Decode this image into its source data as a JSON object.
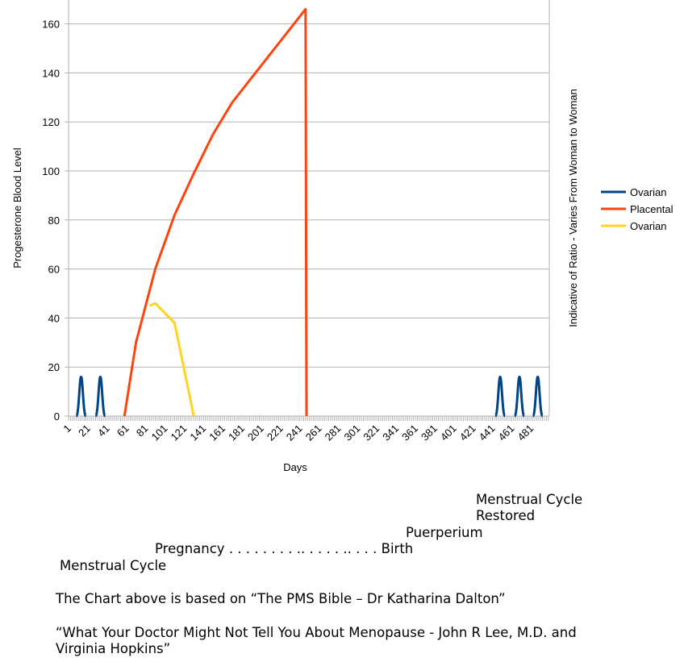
{
  "chart_data": {
    "type": "line",
    "xlabel": "Days",
    "ylabel": "Progesterone Blood Level",
    "secondary_ylabel": "Indicative of Ratio - Varies From Woman to Woman",
    "ylim": [
      0,
      170
    ],
    "yticks": [
      0,
      20,
      40,
      60,
      80,
      100,
      120,
      140,
      160
    ],
    "xlim": [
      1,
      500
    ],
    "xticks": [
      1,
      21,
      41,
      61,
      81,
      101,
      121,
      141,
      161,
      181,
      201,
      221,
      241,
      261,
      281,
      301,
      321,
      341,
      361,
      381,
      401,
      421,
      441,
      461,
      481
    ],
    "grid": "horizontal",
    "legend_position": "right",
    "series": [
      {
        "name": "Ovarian",
        "color": "#004586",
        "style": "cycle-peaks",
        "peaks": [
          {
            "start": 9,
            "center": 14,
            "end": 19,
            "value": 16
          },
          {
            "start": 29,
            "center": 34,
            "end": 39,
            "value": 16
          },
          {
            "start": 444,
            "center": 449,
            "end": 454,
            "value": 16
          },
          {
            "start": 464,
            "center": 469,
            "end": 474,
            "value": 16
          },
          {
            "start": 483,
            "center": 488,
            "end": 493,
            "value": 16
          }
        ]
      },
      {
        "name": "Placental",
        "color": "#ff420e",
        "points": [
          [
            59,
            0
          ],
          [
            71,
            30
          ],
          [
            91,
            60
          ],
          [
            111,
            82
          ],
          [
            131,
            99
          ],
          [
            151,
            115
          ],
          [
            171,
            128
          ],
          [
            191,
            138
          ],
          [
            211,
            148
          ],
          [
            231,
            158
          ],
          [
            247,
            166
          ],
          [
            248,
            0
          ]
        ]
      },
      {
        "name": "Ovarian",
        "color": "#ffd320",
        "points": [
          [
            85,
            45
          ],
          [
            91,
            46
          ],
          [
            111,
            38
          ],
          [
            131,
            0
          ]
        ]
      }
    ]
  },
  "notes": {
    "restored_1": "Menstrual Cycle",
    "restored_2": "Restored",
    "puerperium": "Puerperium",
    "pregnancy": "Pregnancy . . . . . . . . .. . . . . .. . . . Birth",
    "menstrual": "Menstrual Cycle",
    "source_1": "The Chart above is based on “The PMS Bible – Dr Katharina Dalton”",
    "source_2a": "“What Your Doctor Might Not Tell You About Menopause - John R Lee, M.D. and",
    "source_2b": "Virginia Hopkins”"
  }
}
